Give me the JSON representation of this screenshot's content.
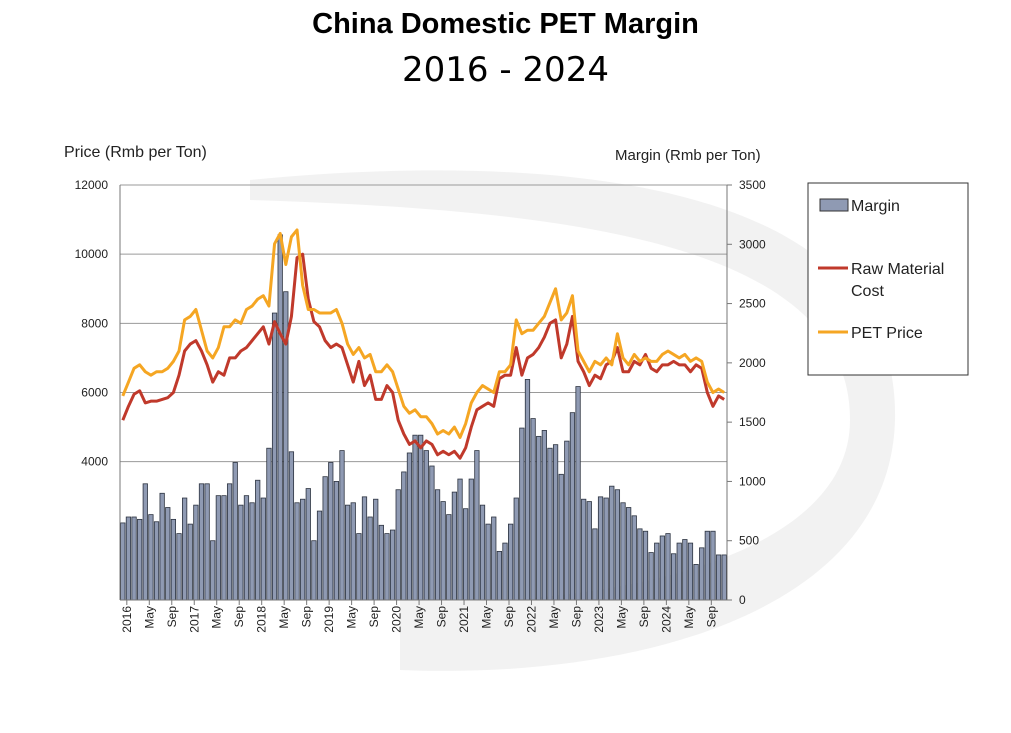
{
  "title": "China Domestic PET Margin",
  "subtitle": "2016 - 2024",
  "chart_data": {
    "type": "bar+line",
    "left_axis": {
      "title": "Price (Rmb per Ton)",
      "range": [
        0,
        12000
      ],
      "ticks": [
        4000,
        6000,
        8000,
        10000,
        12000
      ]
    },
    "right_axis": {
      "title": "Margin (Rmb per Ton)",
      "range": [
        0,
        3500
      ],
      "ticks": [
        0,
        500,
        1000,
        1500,
        2000,
        2500,
        3000,
        3500
      ]
    },
    "x_tick_labels": [
      "2016",
      "May",
      "Sep",
      "2017",
      "May",
      "Sep",
      "2018",
      "May",
      "Sep",
      "2019",
      "May",
      "Sep",
      "2020",
      "May",
      "Sep",
      "2021",
      "May",
      "Sep",
      "2022",
      "May",
      "Sep",
      "2023",
      "May",
      "Sep",
      "2024",
      "May",
      "Sep"
    ],
    "grid": "horizontal",
    "legend_position": "top-right",
    "colors": {
      "margin": "#8f9ab3",
      "raw_material": "#c0392b",
      "pet_price": "#f5a623"
    },
    "series": [
      {
        "name": "Margin",
        "type": "bar",
        "axis": "right",
        "values": [
          650,
          700,
          700,
          680,
          980,
          720,
          660,
          900,
          780,
          680,
          560,
          860,
          640,
          800,
          980,
          980,
          500,
          880,
          880,
          980,
          1160,
          800,
          880,
          820,
          1010,
          860,
          1280,
          2420,
          3080,
          2600,
          1250,
          820,
          850,
          940,
          500,
          750,
          1040,
          1160,
          1000,
          1260,
          800,
          820,
          560,
          870,
          700,
          850,
          630,
          560,
          590,
          930,
          1080,
          1240,
          1390,
          1390,
          1260,
          1130,
          930,
          830,
          720,
          910,
          1020,
          770,
          1020,
          1260,
          800,
          640,
          700,
          410,
          480,
          640,
          860,
          1450,
          1860,
          1530,
          1380,
          1430,
          1280,
          1310,
          1060,
          1340,
          1580,
          1800,
          850,
          830,
          600,
          870,
          860,
          960,
          930,
          820,
          780,
          710,
          600,
          580,
          400,
          480,
          540,
          560,
          390,
          480,
          510,
          480,
          300,
          440,
          580,
          580,
          380,
          380
        ]
      },
      {
        "name": "Raw Material Cost",
        "type": "line",
        "axis": "left",
        "values": [
          5200,
          5600,
          5950,
          6050,
          5700,
          5750,
          5750,
          5800,
          5850,
          6000,
          6500,
          7200,
          7400,
          7500,
          7200,
          6800,
          6300,
          6600,
          6500,
          7000,
          7000,
          7200,
          7300,
          7500,
          7700,
          7900,
          7400,
          8050,
          7700,
          7400,
          8200,
          9900,
          10000,
          8700,
          8050,
          7900,
          7500,
          7300,
          7400,
          7300,
          6800,
          6300,
          6900,
          6200,
          6500,
          5800,
          5800,
          6200,
          6000,
          5200,
          4800,
          4500,
          4600,
          4400,
          4600,
          4500,
          4200,
          4300,
          4200,
          4300,
          4100,
          4400,
          5000,
          5500,
          5600,
          5700,
          5600,
          6400,
          6500,
          6500,
          7300,
          6500,
          7000,
          7100,
          7300,
          7600,
          8000,
          8100,
          7000,
          7400,
          8200,
          6900,
          6600,
          6200,
          6500,
          6400,
          6800,
          6900,
          7300,
          6600,
          6600,
          6900,
          6800,
          7100,
          6700,
          6600,
          6800,
          6800,
          6900,
          6800,
          6800,
          6600,
          6800,
          6700,
          6000,
          5600,
          5900,
          5800
        ]
      },
      {
        "name": "PET Price",
        "type": "line",
        "axis": "left",
        "values": [
          5900,
          6300,
          6700,
          6800,
          6600,
          6500,
          6600,
          6600,
          6700,
          6900,
          7200,
          8100,
          8200,
          8400,
          7800,
          7200,
          7000,
          7300,
          7900,
          7900,
          8100,
          8000,
          8400,
          8500,
          8700,
          8800,
          8500,
          10300,
          10600,
          9700,
          10500,
          10700,
          9100,
          8400,
          8400,
          8300,
          8300,
          8300,
          8400,
          8000,
          7400,
          7100,
          7300,
          7000,
          7100,
          6600,
          6600,
          6800,
          6600,
          6100,
          5600,
          5400,
          5500,
          5300,
          5300,
          5100,
          4800,
          4900,
          4800,
          5000,
          4700,
          5100,
          5700,
          6000,
          6200,
          6100,
          6000,
          6600,
          6600,
          6800,
          8100,
          7700,
          7800,
          7800,
          8000,
          8200,
          8600,
          9000,
          8100,
          8300,
          8800,
          7200,
          6900,
          6600,
          6900,
          6800,
          7000,
          6800,
          7700,
          7000,
          6800,
          7100,
          6900,
          7000,
          6900,
          6900,
          7100,
          7200,
          7100,
          7000,
          7100,
          6900,
          7000,
          6900,
          6300,
          6000,
          6100,
          6000
        ]
      }
    ]
  }
}
